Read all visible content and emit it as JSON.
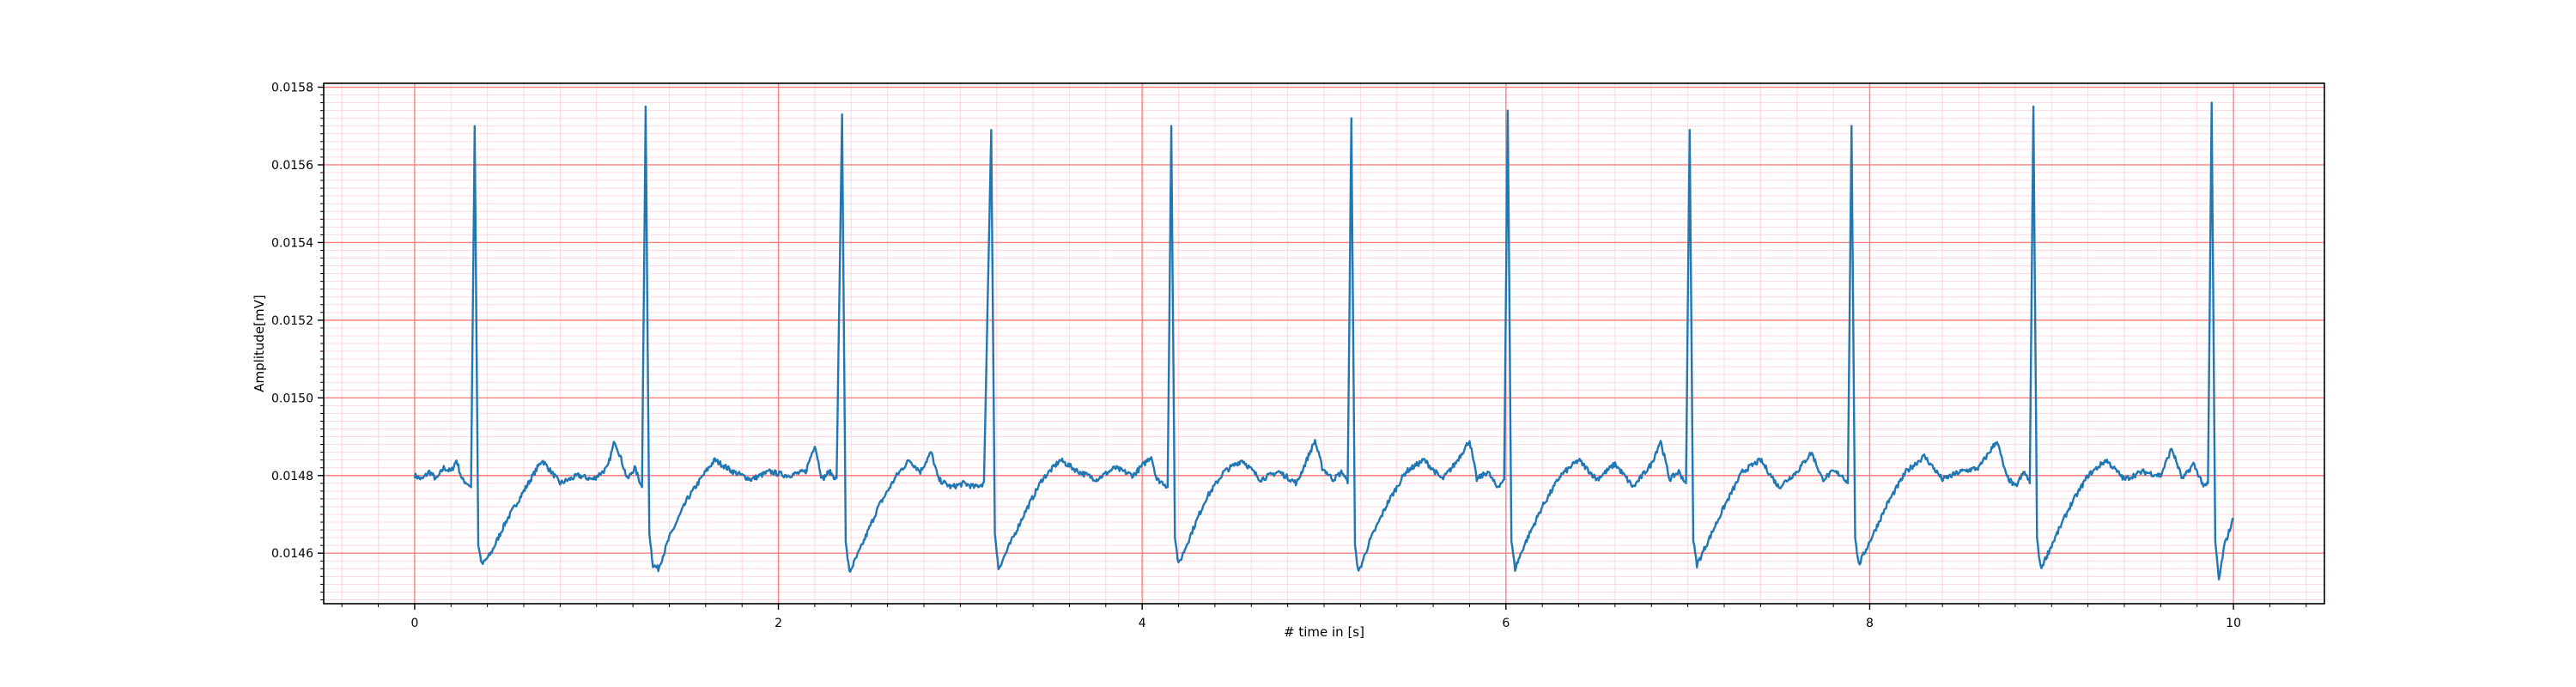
{
  "chart_data": {
    "type": "line",
    "title": "",
    "xlabel": "# time in [s]",
    "ylabel": "Amplitude[mV]",
    "xlim": [
      -0.5,
      10.5
    ],
    "ylim": [
      0.01447,
      0.01581
    ],
    "x_ticks": [
      0,
      2,
      4,
      6,
      8,
      10
    ],
    "x_tick_labels": [
      "0",
      "2",
      "4",
      "6",
      "8",
      "10"
    ],
    "y_ticks": [
      0.0146,
      0.0148,
      0.015,
      0.0152,
      0.0154,
      0.0156,
      0.0158
    ],
    "y_tick_labels": [
      "0.0146",
      "0.0148",
      "0.0150",
      "0.0152",
      "0.0154",
      "0.0156",
      "0.0158"
    ],
    "grid": "major red, minor pink",
    "legend": "none",
    "colors": {
      "line": "#1f77b4",
      "major_grid": "#ff8080",
      "minor_grid": "#ffd6e0",
      "axes": "#000000"
    },
    "sampling_rate_hz": 100,
    "baseline": 0.0148,
    "beats": [
      {
        "t": 0.33,
        "peak": 0.0157,
        "trough": 0.01457
      },
      {
        "t": 1.27,
        "peak": 0.01575,
        "trough": 0.01456
      },
      {
        "t": 2.35,
        "peak": 0.01573,
        "trough": 0.01455
      },
      {
        "t": 3.17,
        "peak": 0.01569,
        "trough": 0.01456
      },
      {
        "t": 4.16,
        "peak": 0.0157,
        "trough": 0.01457
      },
      {
        "t": 5.15,
        "peak": 0.01572,
        "trough": 0.01455
      },
      {
        "t": 6.01,
        "peak": 0.01574,
        "trough": 0.01456
      },
      {
        "t": 7.01,
        "peak": 0.01569,
        "trough": 0.01457
      },
      {
        "t": 7.9,
        "peak": 0.0157,
        "trough": 0.01457
      },
      {
        "t": 8.9,
        "peak": 0.01575,
        "trough": 0.01456
      },
      {
        "t": 9.88,
        "peak": 0.01576,
        "trough": 0.01453
      }
    ],
    "series": [
      {
        "x_start": 0,
        "x_end": 10,
        "interp": "linear",
        "points": [
          [
            0.0,
            0.0148
          ],
          [
            0.04,
            0.01479
          ],
          [
            0.08,
            0.01481
          ],
          [
            0.12,
            0.01479
          ],
          [
            0.16,
            0.01482
          ],
          [
            0.2,
            0.01481
          ],
          [
            0.23,
            0.01484
          ],
          [
            0.26,
            0.01479
          ],
          [
            0.29,
            0.01478
          ],
          [
            0.31,
            0.01477
          ],
          [
            0.33,
            0.0157
          ],
          [
            0.35,
            0.01462
          ],
          [
            0.37,
            0.01457
          ],
          [
            0.42,
            0.0146
          ],
          [
            0.5,
            0.01468
          ],
          [
            0.6,
            0.01476
          ],
          [
            0.7,
            0.01484
          ],
          [
            0.75,
            0.01481
          ],
          [
            0.8,
            0.01478
          ],
          [
            0.9,
            0.0148
          ],
          [
            0.98,
            0.01479
          ],
          [
            1.06,
            0.01482
          ],
          [
            1.1,
            0.01489
          ],
          [
            1.13,
            0.01485
          ],
          [
            1.17,
            0.01479
          ],
          [
            1.21,
            0.01482
          ],
          [
            1.25,
            0.01477
          ],
          [
            1.27,
            0.01575
          ],
          [
            1.29,
            0.01465
          ],
          [
            1.31,
            0.01457
          ],
          [
            1.34,
            0.01456
          ],
          [
            1.4,
            0.01464
          ],
          [
            1.5,
            0.01474
          ],
          [
            1.6,
            0.01481
          ],
          [
            1.65,
            0.01484
          ],
          [
            1.75,
            0.01481
          ],
          [
            1.85,
            0.01479
          ],
          [
            1.95,
            0.01481
          ],
          [
            2.05,
            0.0148
          ],
          [
            2.15,
            0.01481
          ],
          [
            2.2,
            0.01488
          ],
          [
            2.24,
            0.01479
          ],
          [
            2.28,
            0.01481
          ],
          [
            2.32,
            0.01479
          ],
          [
            2.35,
            0.01573
          ],
          [
            2.37,
            0.01463
          ],
          [
            2.39,
            0.01455
          ],
          [
            2.45,
            0.01461
          ],
          [
            2.55,
            0.01472
          ],
          [
            2.65,
            0.0148
          ],
          [
            2.72,
            0.01484
          ],
          [
            2.78,
            0.01481
          ],
          [
            2.84,
            0.01486
          ],
          [
            2.88,
            0.01479
          ],
          [
            2.95,
            0.01477
          ],
          [
            3.02,
            0.01478
          ],
          [
            3.08,
            0.01477
          ],
          [
            3.13,
            0.01478
          ],
          [
            3.17,
            0.01569
          ],
          [
            3.19,
            0.01465
          ],
          [
            3.21,
            0.01456
          ],
          [
            3.26,
            0.01461
          ],
          [
            3.35,
            0.0147
          ],
          [
            3.45,
            0.01479
          ],
          [
            3.55,
            0.01484
          ],
          [
            3.65,
            0.01481
          ],
          [
            3.75,
            0.01479
          ],
          [
            3.85,
            0.01482
          ],
          [
            3.95,
            0.0148
          ],
          [
            4.05,
            0.01485
          ],
          [
            4.08,
            0.01479
          ],
          [
            4.12,
            0.01478
          ],
          [
            4.14,
            0.01477
          ],
          [
            4.16,
            0.0157
          ],
          [
            4.18,
            0.01464
          ],
          [
            4.2,
            0.01457
          ],
          [
            4.26,
            0.01464
          ],
          [
            4.35,
            0.01474
          ],
          [
            4.45,
            0.01481
          ],
          [
            4.55,
            0.01484
          ],
          [
            4.65,
            0.01479
          ],
          [
            4.75,
            0.01481
          ],
          [
            4.85,
            0.01478
          ],
          [
            4.95,
            0.01489
          ],
          [
            4.99,
            0.01482
          ],
          [
            5.05,
            0.01479
          ],
          [
            5.1,
            0.01481
          ],
          [
            5.13,
            0.01478
          ],
          [
            5.15,
            0.01572
          ],
          [
            5.17,
            0.01462
          ],
          [
            5.19,
            0.01455
          ],
          [
            5.25,
            0.01463
          ],
          [
            5.35,
            0.01473
          ],
          [
            5.45,
            0.01481
          ],
          [
            5.55,
            0.01484
          ],
          [
            5.65,
            0.01479
          ],
          [
            5.72,
            0.01483
          ],
          [
            5.8,
            0.01489
          ],
          [
            5.84,
            0.01479
          ],
          [
            5.9,
            0.01481
          ],
          [
            5.95,
            0.01477
          ],
          [
            5.99,
            0.01479
          ],
          [
            6.01,
            0.01574
          ],
          [
            6.03,
            0.01463
          ],
          [
            6.05,
            0.01456
          ],
          [
            6.1,
            0.01462
          ],
          [
            6.2,
            0.01472
          ],
          [
            6.3,
            0.0148
          ],
          [
            6.4,
            0.01484
          ],
          [
            6.5,
            0.01479
          ],
          [
            6.6,
            0.01483
          ],
          [
            6.7,
            0.01477
          ],
          [
            6.8,
            0.01483
          ],
          [
            6.85,
            0.01489
          ],
          [
            6.9,
            0.01479
          ],
          [
            6.95,
            0.01481
          ],
          [
            6.99,
            0.01478
          ],
          [
            7.01,
            0.01569
          ],
          [
            7.03,
            0.01463
          ],
          [
            7.05,
            0.01457
          ],
          [
            7.1,
            0.01462
          ],
          [
            7.2,
            0.01472
          ],
          [
            7.3,
            0.01481
          ],
          [
            7.4,
            0.01484
          ],
          [
            7.5,
            0.01477
          ],
          [
            7.6,
            0.01481
          ],
          [
            7.68,
            0.01486
          ],
          [
            7.74,
            0.01479
          ],
          [
            7.8,
            0.01481
          ],
          [
            7.85,
            0.0148
          ],
          [
            7.88,
            0.01478
          ],
          [
            7.9,
            0.0157
          ],
          [
            7.92,
            0.01464
          ],
          [
            7.94,
            0.01457
          ],
          [
            8.0,
            0.01463
          ],
          [
            8.1,
            0.01473
          ],
          [
            8.2,
            0.01481
          ],
          [
            8.3,
            0.01485
          ],
          [
            8.4,
            0.01479
          ],
          [
            8.5,
            0.01481
          ],
          [
            8.6,
            0.01482
          ],
          [
            8.7,
            0.01489
          ],
          [
            8.75,
            0.0148
          ],
          [
            8.8,
            0.01477
          ],
          [
            8.85,
            0.01481
          ],
          [
            8.88,
            0.01478
          ],
          [
            8.9,
            0.01575
          ],
          [
            8.92,
            0.01464
          ],
          [
            8.94,
            0.01456
          ],
          [
            9.0,
            0.01462
          ],
          [
            9.1,
            0.01472
          ],
          [
            9.2,
            0.0148
          ],
          [
            9.3,
            0.01484
          ],
          [
            9.4,
            0.01479
          ],
          [
            9.5,
            0.01481
          ],
          [
            9.6,
            0.0148
          ],
          [
            9.66,
            0.01487
          ],
          [
            9.72,
            0.01479
          ],
          [
            9.78,
            0.01483
          ],
          [
            9.84,
            0.01477
          ],
          [
            9.86,
            0.01478
          ],
          [
            9.88,
            0.01576
          ],
          [
            9.9,
            0.01463
          ],
          [
            9.92,
            0.01453
          ],
          [
            9.95,
            0.01462
          ],
          [
            10.0,
            0.01469
          ]
        ]
      }
    ]
  }
}
